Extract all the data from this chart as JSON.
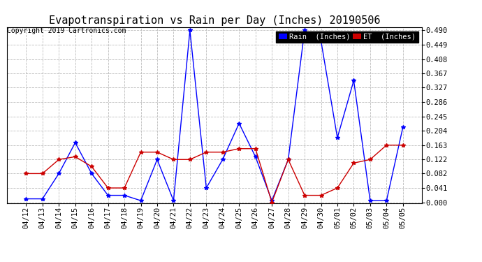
{
  "title": "Evapotranspiration vs Rain per Day (Inches) 20190506",
  "copyright": "Copyright 2019 Cartronics.com",
  "x_labels": [
    "04/12",
    "04/13",
    "04/14",
    "04/15",
    "04/16",
    "04/17",
    "04/18",
    "04/19",
    "04/20",
    "04/21",
    "04/22",
    "04/23",
    "04/24",
    "04/25",
    "04/26",
    "04/27",
    "04/28",
    "04/29",
    "04/30",
    "05/01",
    "05/02",
    "05/03",
    "05/04",
    "05/05"
  ],
  "rain_inches": [
    0.01,
    0.01,
    0.082,
    0.17,
    0.082,
    0.02,
    0.02,
    0.005,
    0.122,
    0.005,
    0.49,
    0.041,
    0.122,
    0.225,
    0.13,
    0.005,
    0.122,
    0.49,
    0.46,
    0.184,
    0.347,
    0.005,
    0.005,
    0.214
  ],
  "et_inches": [
    0.082,
    0.082,
    0.122,
    0.13,
    0.102,
    0.041,
    0.041,
    0.143,
    0.143,
    0.122,
    0.122,
    0.143,
    0.143,
    0.153,
    0.153,
    0.0,
    0.122,
    0.02,
    0.02,
    0.041,
    0.112,
    0.122,
    0.163,
    0.163
  ],
  "rain_color": "#0000ff",
  "et_color": "#cc0000",
  "background_color": "#ffffff",
  "grid_color": "#bbbbbb",
  "ylim_max": 0.49,
  "yticks": [
    0.0,
    0.041,
    0.082,
    0.122,
    0.163,
    0.204,
    0.245,
    0.286,
    0.327,
    0.367,
    0.408,
    0.449,
    0.49
  ],
  "title_fontsize": 11,
  "copyright_fontsize": 7,
  "tick_fontsize": 7.5,
  "legend_rain_label": "Rain  (Inches)",
  "legend_et_label": "ET  (Inches)",
  "legend_bg": "#000000",
  "legend_rain_bg": "#0000ff",
  "legend_et_bg": "#cc0000"
}
